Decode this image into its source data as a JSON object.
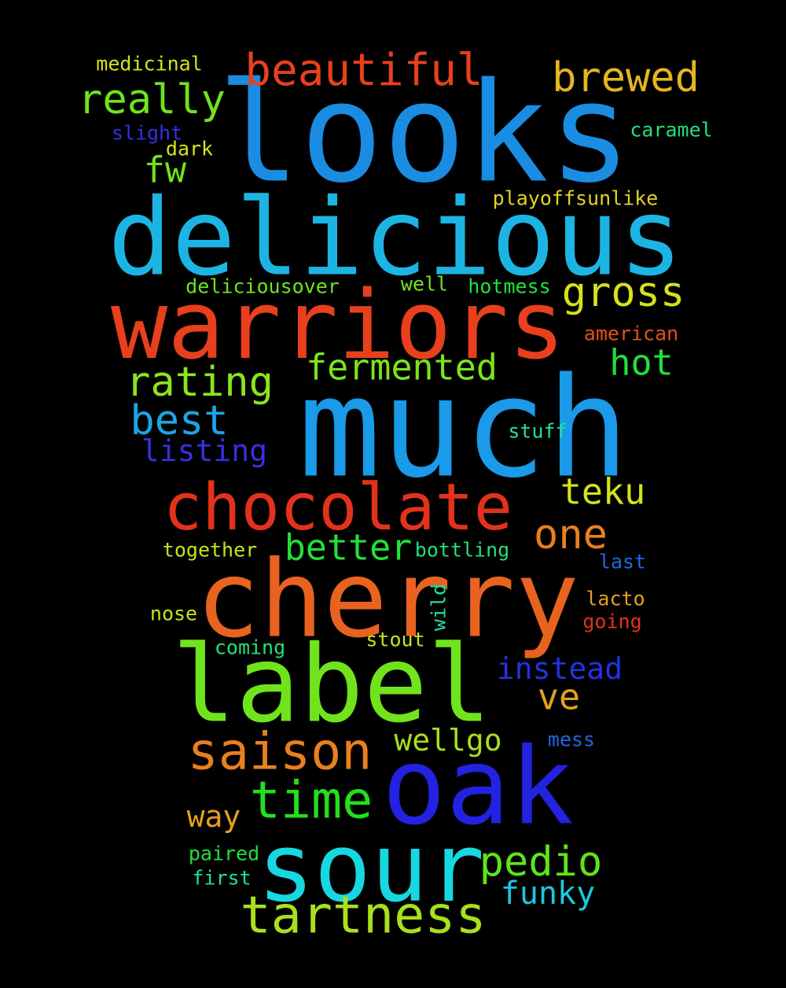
{
  "words": [
    {
      "text": "looks",
      "color": "#1a8de2"
    },
    {
      "text": "much",
      "color": "#1a9ae8"
    },
    {
      "text": "delicious",
      "color": "#1cb5e3"
    },
    {
      "text": "cherry",
      "color": "#e8631f"
    },
    {
      "text": "label",
      "color": "#6fe41c"
    },
    {
      "text": "warriors",
      "color": "#e8401d"
    },
    {
      "text": "oak",
      "color": "#2222e0"
    },
    {
      "text": "sour",
      "color": "#17d8e0"
    },
    {
      "text": "chocolate",
      "color": "#e3321b"
    },
    {
      "text": "saison",
      "color": "#e8801f"
    },
    {
      "text": "tartness",
      "color": "#a8e01c"
    },
    {
      "text": "time",
      "color": "#22e01c"
    },
    {
      "text": "beautiful",
      "color": "#e8401d"
    },
    {
      "text": "brewed",
      "color": "#e6b51f"
    },
    {
      "text": "really",
      "color": "#6fe41c"
    },
    {
      "text": "rating",
      "color": "#8ce41c"
    },
    {
      "text": "best",
      "color": "#1aa6e6"
    },
    {
      "text": "gross",
      "color": "#d4e31c"
    },
    {
      "text": "fermented",
      "color": "#7be41c"
    },
    {
      "text": "pedio",
      "color": "#5fe41c"
    },
    {
      "text": "funky",
      "color": "#1cc7e3"
    },
    {
      "text": "one",
      "color": "#e8801f"
    },
    {
      "text": "teku",
      "color": "#d4e31c"
    },
    {
      "text": "better",
      "color": "#22e038"
    },
    {
      "text": "hot",
      "color": "#22e038"
    },
    {
      "text": "listing",
      "color": "#3a2ee0"
    },
    {
      "text": "instead",
      "color": "#2233e0"
    },
    {
      "text": "ve",
      "color": "#e6a01f"
    },
    {
      "text": "wellgo",
      "color": "#a8e01c"
    },
    {
      "text": "way",
      "color": "#e6a01f"
    },
    {
      "text": "fw",
      "color": "#6fe41c"
    },
    {
      "text": "medicinal",
      "color": "#d4e31c"
    },
    {
      "text": "slight",
      "color": "#3a2ee0"
    },
    {
      "text": "dark",
      "color": "#d4e31c"
    },
    {
      "text": "caramel",
      "color": "#22e07a"
    },
    {
      "text": "playoffsunlike",
      "color": "#e6d21f"
    },
    {
      "text": "deliciousover",
      "color": "#6fe41c"
    },
    {
      "text": "well",
      "color": "#6fe41c"
    },
    {
      "text": "hotmess",
      "color": "#22e038"
    },
    {
      "text": "american",
      "color": "#e3501b"
    },
    {
      "text": "stuff",
      "color": "#22e0a0"
    },
    {
      "text": "together",
      "color": "#c8e31c"
    },
    {
      "text": "bottling",
      "color": "#22e07a"
    },
    {
      "text": "last",
      "color": "#2266e0"
    },
    {
      "text": "nose",
      "color": "#c8e31c"
    },
    {
      "text": "wild",
      "color": "#22e0a0"
    },
    {
      "text": "lacto",
      "color": "#e6a01f"
    },
    {
      "text": "going",
      "color": "#e3321b"
    },
    {
      "text": "stout",
      "color": "#c8e31c"
    },
    {
      "text": "coming",
      "color": "#22e07a"
    },
    {
      "text": "mess",
      "color": "#2266e0"
    },
    {
      "text": "paired",
      "color": "#22e038"
    },
    {
      "text": "first",
      "color": "#22e0a0"
    }
  ]
}
